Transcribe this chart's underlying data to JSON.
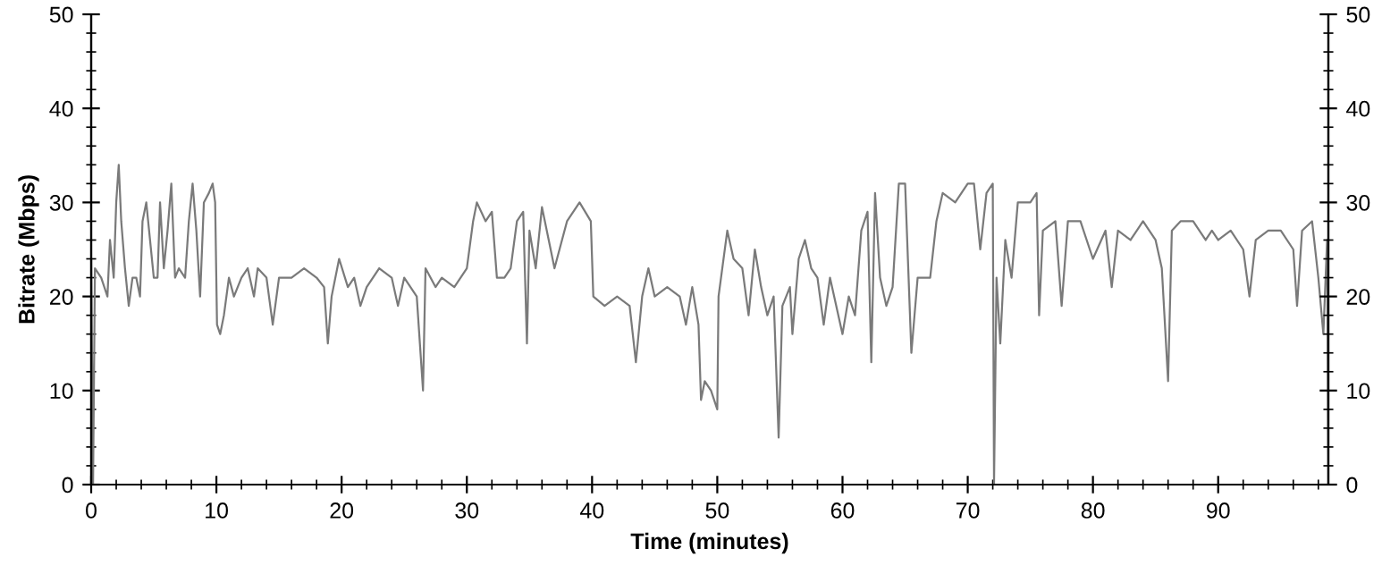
{
  "chart_data": {
    "type": "line",
    "xlabel": "Time (minutes)",
    "ylabel": "Bitrate (Mbps)",
    "xlim": [
      0,
      98.8
    ],
    "xticks": [
      0,
      10,
      20,
      30,
      40,
      50,
      60,
      70,
      80,
      90
    ],
    "ylim": [
      0,
      50
    ],
    "yticks": [
      0,
      10,
      20,
      30,
      40,
      50
    ],
    "y2lim": [
      0,
      50
    ],
    "y2ticks": [
      0,
      10,
      20,
      30,
      40,
      50
    ],
    "grid": false,
    "marker": "none",
    "line_style": "solid",
    "series": [
      {
        "color": "#7a7a7a",
        "x": [
          0.0,
          0.15,
          0.3,
          0.8,
          1.3,
          1.5,
          1.8,
          2.0,
          2.2,
          2.4,
          2.7,
          3.0,
          3.3,
          3.6,
          3.9,
          4.1,
          4.4,
          4.7,
          5.0,
          5.3,
          5.5,
          5.8,
          6.1,
          6.4,
          6.7,
          7.0,
          7.5,
          7.8,
          8.1,
          8.4,
          8.7,
          9.0,
          9.4,
          9.7,
          9.9,
          10.05,
          10.3,
          10.6,
          11.0,
          11.4,
          12,
          12.5,
          13.0,
          13.3,
          14.0,
          14.5,
          15,
          16,
          17,
          18,
          18.6,
          18.9,
          19.2,
          19.8,
          20.5,
          21,
          21.5,
          22,
          23,
          24,
          24.5,
          25,
          26,
          26.5,
          26.7,
          27.5,
          28,
          29,
          30,
          30.5,
          30.8,
          31.5,
          32,
          32.4,
          33,
          33.5,
          34,
          34.5,
          34.8,
          35,
          35.5,
          36,
          37,
          38,
          39,
          39.9,
          40.1,
          41,
          42,
          43,
          43.5,
          44,
          44.5,
          45,
          46,
          47,
          47.5,
          48,
          48.5,
          48.7,
          49,
          49.5,
          50,
          50.1,
          50.8,
          51.3,
          52,
          52.5,
          53,
          53.5,
          54,
          54.5,
          54.9,
          55.2,
          55.8,
          56,
          56.5,
          57,
          57.5,
          58,
          58.5,
          59,
          60,
          60.5,
          61,
          61.5,
          62,
          62.3,
          62.6,
          63,
          63.5,
          64,
          64.5,
          65,
          65.5,
          66,
          67,
          67.5,
          68,
          69,
          70,
          70.5,
          71,
          71.5,
          72,
          72.1,
          72.3,
          72.6,
          73,
          73.5,
          74,
          75,
          75.5,
          75.7,
          76,
          77,
          77.5,
          78,
          79,
          80,
          81,
          81.5,
          82,
          83,
          84,
          85,
          85.5,
          86,
          86.3,
          87,
          88,
          89,
          89.5,
          90,
          91,
          92,
          92.5,
          93,
          94,
          95,
          96,
          96.3,
          96.7,
          97.5,
          98,
          98.4,
          98.7,
          98.8
        ],
        "values": [
          24,
          0,
          23,
          22,
          20,
          26,
          22,
          30,
          34,
          28,
          23,
          19,
          22,
          22,
          20,
          28,
          30,
          26,
          22,
          22,
          30,
          23,
          27,
          32,
          22,
          23,
          22,
          28,
          32,
          27,
          20,
          30,
          31,
          32,
          30,
          17,
          16,
          18,
          22,
          20,
          22,
          23,
          20,
          23,
          22,
          17,
          22,
          22,
          23,
          22,
          21,
          15,
          20,
          24,
          21,
          22,
          19,
          21,
          23,
          22,
          19,
          22,
          20,
          10,
          23,
          21,
          22,
          21,
          23,
          28,
          30,
          28,
          29,
          22,
          22,
          23,
          28,
          29,
          15,
          27,
          23,
          29.5,
          23,
          28,
          30,
          28,
          20,
          19,
          20,
          19,
          13,
          20,
          23,
          20,
          21,
          20,
          17,
          21,
          17,
          9,
          11,
          10,
          8,
          20,
          27,
          24,
          23,
          18,
          25,
          21,
          18,
          20,
          5,
          19,
          21,
          16,
          24,
          26,
          23,
          22,
          17,
          22,
          16,
          20,
          18,
          27,
          29,
          13,
          31,
          22,
          19,
          21,
          32,
          32,
          14,
          22,
          22,
          28,
          31,
          30,
          32,
          32,
          25,
          31,
          32,
          0,
          22,
          15,
          26,
          22,
          30,
          30,
          31,
          18,
          27,
          28,
          19,
          28,
          28,
          24,
          27,
          21,
          27,
          26,
          28,
          26,
          23,
          11,
          27,
          28,
          28,
          26,
          27,
          26,
          27,
          25,
          20,
          26,
          27,
          27,
          25,
          19,
          27,
          28,
          22,
          16,
          26,
          0
        ]
      }
    ]
  }
}
